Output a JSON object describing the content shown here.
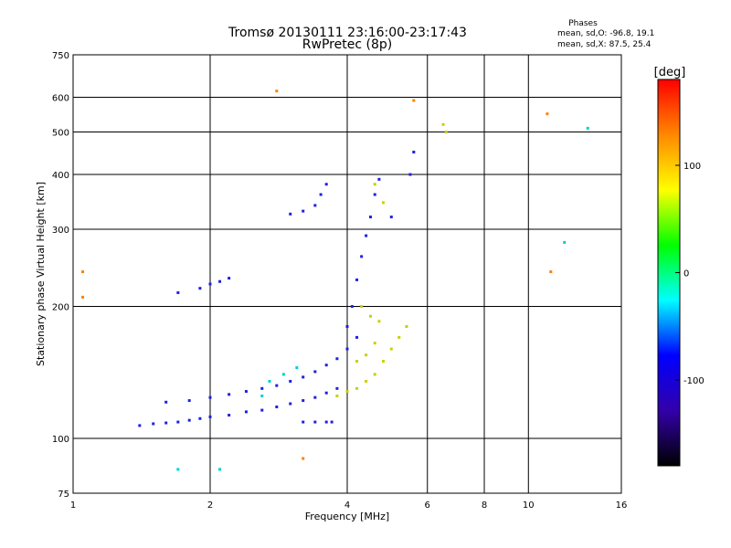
{
  "header": {
    "title": "Tromsø 20130111 23:16:00-23:17:43",
    "subtitle": "RwPretec (8p)",
    "phase_title": "Phases",
    "phase_o": "mean, sd,O: -96.8, 19.1",
    "phase_x": "mean, sd,X:  87.5, 25.4"
  },
  "chart_data": {
    "type": "scatter",
    "title": "Tromsø 20130111 23:16:00-23:17:43",
    "subtitle": "RwPretec (8p)",
    "xlabel": "Frequency [MHz]",
    "ylabel": "Stationary phase Virtual Height [km]",
    "x_scale": "log",
    "y_scale": "log",
    "xlim": [
      1,
      16
    ],
    "ylim": [
      75,
      750
    ],
    "x_ticks": [
      1,
      2,
      4,
      6,
      8,
      10,
      16
    ],
    "y_ticks": [
      75,
      100,
      200,
      300,
      400,
      500,
      600,
      750
    ],
    "grid": true,
    "colorbar": {
      "label": "[deg]",
      "range": [
        -180,
        180
      ],
      "ticks": [
        100,
        0,
        -100
      ],
      "colors": [
        "#ff0000",
        "#ff8800",
        "#ffff00",
        "#00ff00",
        "#00ffff",
        "#0000ff",
        "#3300aa",
        "#000000"
      ]
    },
    "point_size": 3,
    "series": [
      {
        "name": "O",
        "color": "#2020e0",
        "points": [
          [
            1.4,
            107
          ],
          [
            1.5,
            108
          ],
          [
            1.6,
            108.5
          ],
          [
            1.7,
            109
          ],
          [
            1.8,
            110
          ],
          [
            1.9,
            111
          ],
          [
            2.0,
            112
          ],
          [
            2.2,
            113
          ],
          [
            2.4,
            115
          ],
          [
            2.6,
            116
          ],
          [
            2.8,
            118
          ],
          [
            3.0,
            120
          ],
          [
            3.2,
            122
          ],
          [
            3.4,
            124
          ],
          [
            3.6,
            127
          ],
          [
            3.8,
            130
          ],
          [
            1.6,
            121
          ],
          [
            1.8,
            122
          ],
          [
            2.0,
            124
          ],
          [
            2.2,
            126
          ],
          [
            2.4,
            128
          ],
          [
            2.6,
            130
          ],
          [
            2.8,
            132
          ],
          [
            3.0,
            135
          ],
          [
            3.2,
            138
          ],
          [
            3.4,
            142
          ],
          [
            3.6,
            147
          ],
          [
            3.8,
            152
          ],
          [
            4.0,
            160
          ],
          [
            4.2,
            170
          ],
          [
            3.2,
            109
          ],
          [
            3.4,
            109
          ],
          [
            3.6,
            109
          ],
          [
            3.7,
            109
          ],
          [
            4.0,
            180
          ],
          [
            4.1,
            200
          ],
          [
            4.2,
            230
          ],
          [
            4.3,
            260
          ],
          [
            4.4,
            290
          ],
          [
            4.5,
            320
          ],
          [
            4.6,
            360
          ],
          [
            4.7,
            390
          ],
          [
            2.0,
            225
          ],
          [
            2.1,
            228
          ],
          [
            2.2,
            232
          ],
          [
            1.9,
            220
          ],
          [
            1.7,
            215
          ],
          [
            3.0,
            325
          ],
          [
            3.2,
            330
          ],
          [
            3.4,
            340
          ],
          [
            3.5,
            360
          ],
          [
            3.6,
            380
          ],
          [
            5.5,
            400
          ],
          [
            5.6,
            450
          ],
          [
            5.0,
            320
          ]
        ]
      },
      {
        "name": "X",
        "color": "#c8d000",
        "points": [
          [
            4.2,
            130
          ],
          [
            4.4,
            135
          ],
          [
            4.6,
            140
          ],
          [
            4.8,
            150
          ],
          [
            5.0,
            160
          ],
          [
            5.2,
            170
          ],
          [
            5.4,
            180
          ],
          [
            4.3,
            200
          ],
          [
            4.5,
            190
          ],
          [
            4.7,
            185
          ],
          [
            4.2,
            150
          ],
          [
            4.4,
            155
          ],
          [
            4.6,
            165
          ],
          [
            3.8,
            125
          ],
          [
            4.0,
            128
          ],
          [
            4.8,
            345
          ],
          [
            4.6,
            380
          ],
          [
            6.5,
            520
          ],
          [
            6.6,
            500
          ]
        ]
      },
      {
        "name": "",
        "color": "#00d0d0",
        "points": [
          [
            2.7,
            135
          ],
          [
            2.9,
            140
          ],
          [
            3.1,
            145
          ],
          [
            2.6,
            125
          ],
          [
            12.0,
            280
          ],
          [
            13.5,
            510
          ],
          [
            1.7,
            85
          ],
          [
            2.1,
            85
          ]
        ]
      },
      {
        "name": "",
        "color": "#ff8000",
        "points": [
          [
            1.05,
            240
          ],
          [
            1.05,
            210
          ],
          [
            11.0,
            550
          ],
          [
            11.2,
            240
          ],
          [
            5.6,
            590
          ],
          [
            3.2,
            90
          ],
          [
            2.8,
            620
          ]
        ]
      }
    ]
  }
}
